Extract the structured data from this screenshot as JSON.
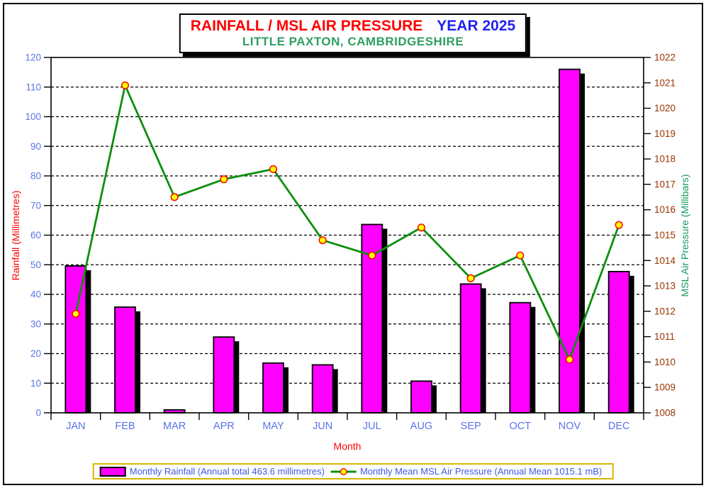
{
  "page": {
    "background": "#FFFFFF",
    "frame_color": "#000000"
  },
  "title": {
    "main": "RAINFALL / MSL AIR PRESSURE",
    "year": "YEAR 2025",
    "subtitle": "LITTLE PAXTON, CAMBRIDGESHIRE",
    "main_color": "#FF0000",
    "year_color": "#2222EE",
    "subtitle_color": "#2E9E62"
  },
  "chart_data": {
    "type": "combo",
    "categories": [
      "JAN",
      "FEB",
      "MAR",
      "APR",
      "MAY",
      "JUN",
      "JUL",
      "AUG",
      "SEP",
      "OCT",
      "NOV",
      "DEC"
    ],
    "series": [
      {
        "name": "Monthly Rainfall (Annual total 463.6 millimetres)",
        "type": "bar",
        "axis": "left",
        "color": "#FF00FF",
        "border_color": "#000000",
        "shadow_color": "#000000",
        "values": [
          49.6,
          35.7,
          1.0,
          25.6,
          16.8,
          16.2,
          63.6,
          10.7,
          43.5,
          37.2,
          116.0,
          47.7
        ]
      },
      {
        "name": "Monthly Mean MSL Air Pressure (Annual Mean 1015.1 mB)",
        "type": "line",
        "axis": "right",
        "color": "#0E8F0E",
        "marker_fill": "#FFFF00",
        "marker_stroke": "#FF0000",
        "values": [
          1011.9,
          1020.9,
          1016.5,
          1017.2,
          1017.6,
          1014.8,
          1014.2,
          1015.3,
          1013.3,
          1014.2,
          1010.1,
          1015.4
        ]
      }
    ],
    "annual_total_rainfall_mm": 463.6,
    "annual_mean_pressure_mb": 1015.1,
    "xlabel": "Month",
    "ylabel_left": "Rainfall (Millimetres)",
    "ylabel_right": "MSL Air Pressure (Millibars)",
    "axis_left": {
      "min": 0,
      "max": 120,
      "step": 10,
      "tick_color": "#5B74E8",
      "title_color": "#FF0000"
    },
    "axis_right": {
      "min": 1008,
      "max": 1022,
      "step": 1,
      "tick_color": "#993300",
      "title_color": "#169A60"
    },
    "x_axis": {
      "tick_color": "#5B74E8",
      "title_color": "#FF0000"
    },
    "grid": {
      "show": true,
      "style": "dashed",
      "color": "#000000",
      "legend_position": "bottom"
    }
  },
  "legend": {
    "border_color": "#D6B800",
    "text_color": "#4059E0"
  }
}
